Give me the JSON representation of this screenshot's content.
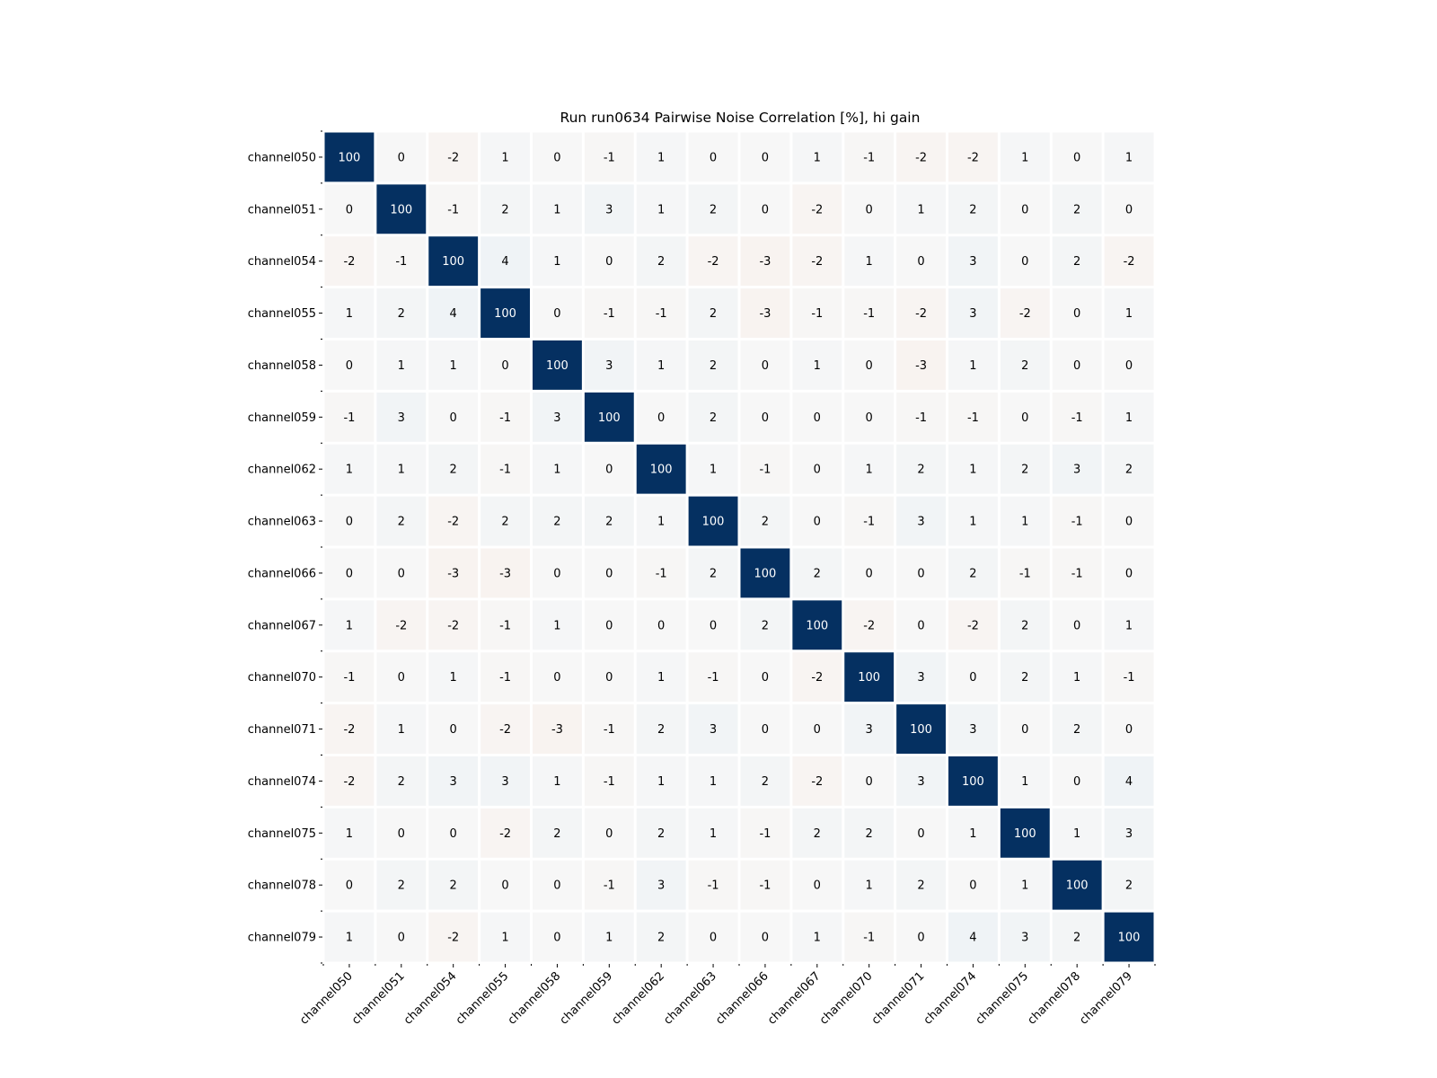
{
  "chart_data": {
    "type": "heatmap",
    "title": "Run run0634 Pairwise Noise Correlation [%], hi gain",
    "xlabel": "",
    "ylabel": "",
    "labels": [
      "channel050",
      "channel051",
      "channel054",
      "channel055",
      "channel058",
      "channel059",
      "channel062",
      "channel063",
      "channel066",
      "channel067",
      "channel070",
      "channel071",
      "channel074",
      "channel075",
      "channel078",
      "channel079"
    ],
    "values": [
      [
        100,
        0,
        -2,
        1,
        0,
        -1,
        1,
        0,
        0,
        1,
        -1,
        -2,
        -2,
        1,
        0,
        1
      ],
      [
        0,
        100,
        -1,
        2,
        1,
        3,
        1,
        2,
        0,
        -2,
        0,
        1,
        2,
        0,
        2,
        0
      ],
      [
        -2,
        -1,
        100,
        4,
        1,
        0,
        2,
        -2,
        -3,
        -2,
        1,
        0,
        3,
        0,
        2,
        -2
      ],
      [
        1,
        2,
        4,
        100,
        0,
        -1,
        -1,
        2,
        -3,
        -1,
        -1,
        -2,
        3,
        -2,
        0,
        1
      ],
      [
        0,
        1,
        1,
        0,
        100,
        3,
        1,
        2,
        0,
        1,
        0,
        -3,
        1,
        2,
        0,
        0
      ],
      [
        -1,
        3,
        0,
        -1,
        3,
        100,
        0,
        2,
        0,
        0,
        0,
        -1,
        -1,
        0,
        -1,
        1
      ],
      [
        1,
        1,
        2,
        -1,
        1,
        0,
        100,
        1,
        -1,
        0,
        1,
        2,
        1,
        2,
        3,
        2
      ],
      [
        0,
        2,
        -2,
        2,
        2,
        2,
        1,
        100,
        2,
        0,
        -1,
        3,
        1,
        1,
        -1,
        0
      ],
      [
        0,
        0,
        -3,
        -3,
        0,
        0,
        -1,
        2,
        100,
        2,
        0,
        0,
        2,
        -1,
        -1,
        0
      ],
      [
        1,
        -2,
        -2,
        -1,
        1,
        0,
        0,
        0,
        2,
        100,
        -2,
        0,
        -2,
        2,
        0,
        1
      ],
      [
        -1,
        0,
        1,
        -1,
        0,
        0,
        1,
        -1,
        0,
        -2,
        100,
        3,
        0,
        2,
        1,
        -1
      ],
      [
        -2,
        1,
        0,
        -2,
        -3,
        -1,
        2,
        3,
        0,
        0,
        3,
        100,
        3,
        0,
        2,
        0
      ],
      [
        -2,
        2,
        3,
        3,
        1,
        -1,
        1,
        1,
        2,
        -2,
        0,
        3,
        100,
        1,
        0,
        4
      ],
      [
        1,
        0,
        0,
        -2,
        2,
        0,
        2,
        1,
        -1,
        2,
        2,
        0,
        1,
        100,
        1,
        3
      ],
      [
        0,
        2,
        2,
        0,
        0,
        -1,
        3,
        -1,
        -1,
        0,
        1,
        2,
        0,
        1,
        100,
        2
      ],
      [
        1,
        0,
        -2,
        1,
        0,
        1,
        2,
        0,
        0,
        1,
        -1,
        0,
        4,
        3,
        2,
        100
      ]
    ],
    "colormap": "RdBu diverging",
    "vmin": -100,
    "vmax": 100,
    "colors": {
      "positive_max": "#053061",
      "neutral": "#f7f7f7",
      "negative_max": "#67001f",
      "cell_border": "#ffffff"
    },
    "grid": false,
    "legend": "none"
  }
}
